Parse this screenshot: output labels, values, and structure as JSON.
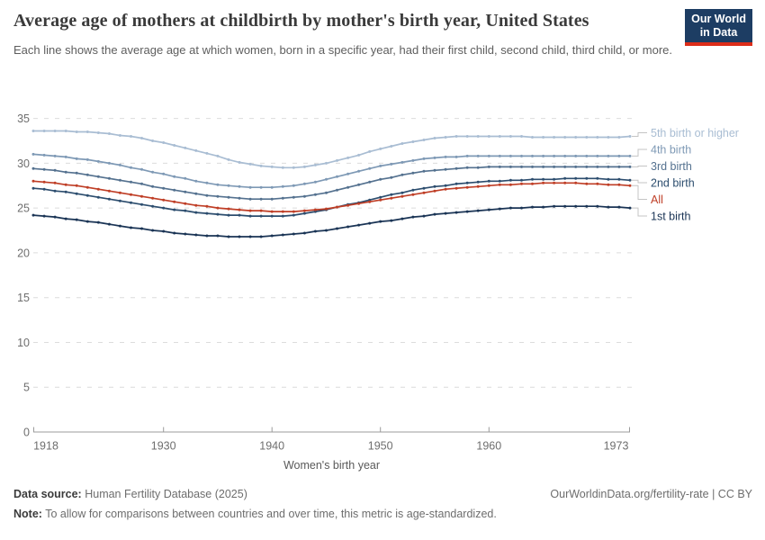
{
  "header": {
    "title": "Average age of mothers at childbirth by mother's birth year, United States",
    "subtitle": "Each line shows the average age at which women, born in a specific year, had their first child, second child, third child, or more.",
    "logo": {
      "line1": "Our World",
      "line2": "in Data"
    }
  },
  "chart_data": {
    "type": "line",
    "title": "Average age of mothers at childbirth by mother's birth year, United States",
    "xlabel": "Women's birth year",
    "ylabel": "",
    "xlim": [
      1918,
      1973
    ],
    "ylim": [
      0,
      35
    ],
    "x_ticks": [
      1918,
      1930,
      1940,
      1950,
      1960,
      1973
    ],
    "y_ticks": [
      0,
      5,
      10,
      15,
      20,
      25,
      30,
      35
    ],
    "grid": "horizontal-dashed",
    "legend_position": "right-of-line-ends",
    "marker": "circle",
    "x": [
      1918,
      1919,
      1920,
      1921,
      1922,
      1923,
      1924,
      1925,
      1926,
      1927,
      1928,
      1929,
      1930,
      1931,
      1932,
      1933,
      1934,
      1935,
      1936,
      1937,
      1938,
      1939,
      1940,
      1941,
      1942,
      1943,
      1944,
      1945,
      1946,
      1947,
      1948,
      1949,
      1950,
      1951,
      1952,
      1953,
      1954,
      1955,
      1956,
      1957,
      1958,
      1959,
      1960,
      1961,
      1962,
      1963,
      1964,
      1965,
      1966,
      1967,
      1968,
      1969,
      1970,
      1971,
      1972,
      1973
    ],
    "series": [
      {
        "name": "5th birth or higher",
        "color": "#a9bdd3",
        "values": [
          33.6,
          33.6,
          33.6,
          33.6,
          33.5,
          33.5,
          33.4,
          33.3,
          33.1,
          33.0,
          32.8,
          32.5,
          32.3,
          32.0,
          31.7,
          31.4,
          31.1,
          30.8,
          30.4,
          30.1,
          29.9,
          29.7,
          29.6,
          29.5,
          29.5,
          29.6,
          29.8,
          30.0,
          30.3,
          30.6,
          30.9,
          31.3,
          31.6,
          31.9,
          32.2,
          32.4,
          32.6,
          32.8,
          32.9,
          33.0,
          33.0,
          33.0,
          33.0,
          33.0,
          33.0,
          33.0,
          32.9,
          32.9,
          32.9,
          32.9,
          32.9,
          32.9,
          32.9,
          32.9,
          32.9,
          33.0
        ]
      },
      {
        "name": "4th birth",
        "color": "#7e99b5",
        "values": [
          31.0,
          30.9,
          30.8,
          30.7,
          30.5,
          30.4,
          30.2,
          30.0,
          29.8,
          29.5,
          29.3,
          29.0,
          28.8,
          28.5,
          28.3,
          28.0,
          27.8,
          27.6,
          27.5,
          27.4,
          27.3,
          27.3,
          27.3,
          27.4,
          27.5,
          27.7,
          27.9,
          28.2,
          28.5,
          28.8,
          29.1,
          29.4,
          29.7,
          29.9,
          30.1,
          30.3,
          30.5,
          30.6,
          30.7,
          30.7,
          30.8,
          30.8,
          30.8,
          30.8,
          30.8,
          30.8,
          30.8,
          30.8,
          30.8,
          30.8,
          30.8,
          30.8,
          30.8,
          30.8,
          30.8,
          30.8
        ]
      },
      {
        "name": "3rd birth",
        "color": "#54718f",
        "values": [
          29.4,
          29.3,
          29.2,
          29.0,
          28.9,
          28.7,
          28.5,
          28.3,
          28.1,
          27.9,
          27.7,
          27.4,
          27.2,
          27.0,
          26.8,
          26.6,
          26.4,
          26.3,
          26.2,
          26.1,
          26.0,
          26.0,
          26.0,
          26.1,
          26.2,
          26.3,
          26.5,
          26.7,
          27.0,
          27.3,
          27.6,
          27.9,
          28.2,
          28.4,
          28.7,
          28.9,
          29.1,
          29.2,
          29.3,
          29.4,
          29.5,
          29.5,
          29.6,
          29.6,
          29.6,
          29.6,
          29.6,
          29.6,
          29.6,
          29.6,
          29.6,
          29.6,
          29.6,
          29.6,
          29.6,
          29.6
        ]
      },
      {
        "name": "2nd birth",
        "color": "#2c4d6e",
        "values": [
          27.2,
          27.1,
          26.9,
          26.8,
          26.6,
          26.4,
          26.2,
          26.0,
          25.8,
          25.6,
          25.4,
          25.2,
          25.0,
          24.8,
          24.7,
          24.5,
          24.4,
          24.3,
          24.2,
          24.2,
          24.1,
          24.1,
          24.1,
          24.1,
          24.2,
          24.4,
          24.6,
          24.8,
          25.1,
          25.4,
          25.6,
          25.9,
          26.2,
          26.5,
          26.7,
          27.0,
          27.2,
          27.4,
          27.5,
          27.7,
          27.8,
          27.9,
          28.0,
          28.0,
          28.1,
          28.1,
          28.2,
          28.2,
          28.2,
          28.3,
          28.3,
          28.3,
          28.3,
          28.2,
          28.2,
          28.1
        ]
      },
      {
        "name": "All",
        "color": "#bf3e26",
        "values": [
          28.0,
          27.9,
          27.8,
          27.6,
          27.5,
          27.3,
          27.1,
          26.9,
          26.7,
          26.5,
          26.3,
          26.1,
          25.9,
          25.7,
          25.5,
          25.3,
          25.2,
          25.0,
          24.9,
          24.8,
          24.7,
          24.7,
          24.6,
          24.6,
          24.6,
          24.7,
          24.8,
          24.9,
          25.1,
          25.3,
          25.5,
          25.7,
          25.9,
          26.1,
          26.3,
          26.5,
          26.7,
          26.9,
          27.1,
          27.2,
          27.3,
          27.4,
          27.5,
          27.6,
          27.6,
          27.7,
          27.7,
          27.8,
          27.8,
          27.8,
          27.8,
          27.7,
          27.7,
          27.6,
          27.6,
          27.5
        ]
      },
      {
        "name": "1st birth",
        "color": "#1a3455",
        "values": [
          24.2,
          24.1,
          24.0,
          23.8,
          23.7,
          23.5,
          23.4,
          23.2,
          23.0,
          22.8,
          22.7,
          22.5,
          22.4,
          22.2,
          22.1,
          22.0,
          21.9,
          21.9,
          21.8,
          21.8,
          21.8,
          21.8,
          21.9,
          22.0,
          22.1,
          22.2,
          22.4,
          22.5,
          22.7,
          22.9,
          23.1,
          23.3,
          23.5,
          23.6,
          23.8,
          24.0,
          24.1,
          24.3,
          24.4,
          24.5,
          24.6,
          24.7,
          24.8,
          24.9,
          25.0,
          25.0,
          25.1,
          25.1,
          25.2,
          25.2,
          25.2,
          25.2,
          25.2,
          25.1,
          25.1,
          25.0
        ]
      }
    ]
  },
  "footer": {
    "source_label": "Data source:",
    "source_value": "Human Fertility Database (2025)",
    "note_label": "Note:",
    "note_value": "To allow for comparisons between countries and over time, this metric is age-standardized.",
    "link": "OurWorldinData.org/fertility-rate | CC BY"
  }
}
